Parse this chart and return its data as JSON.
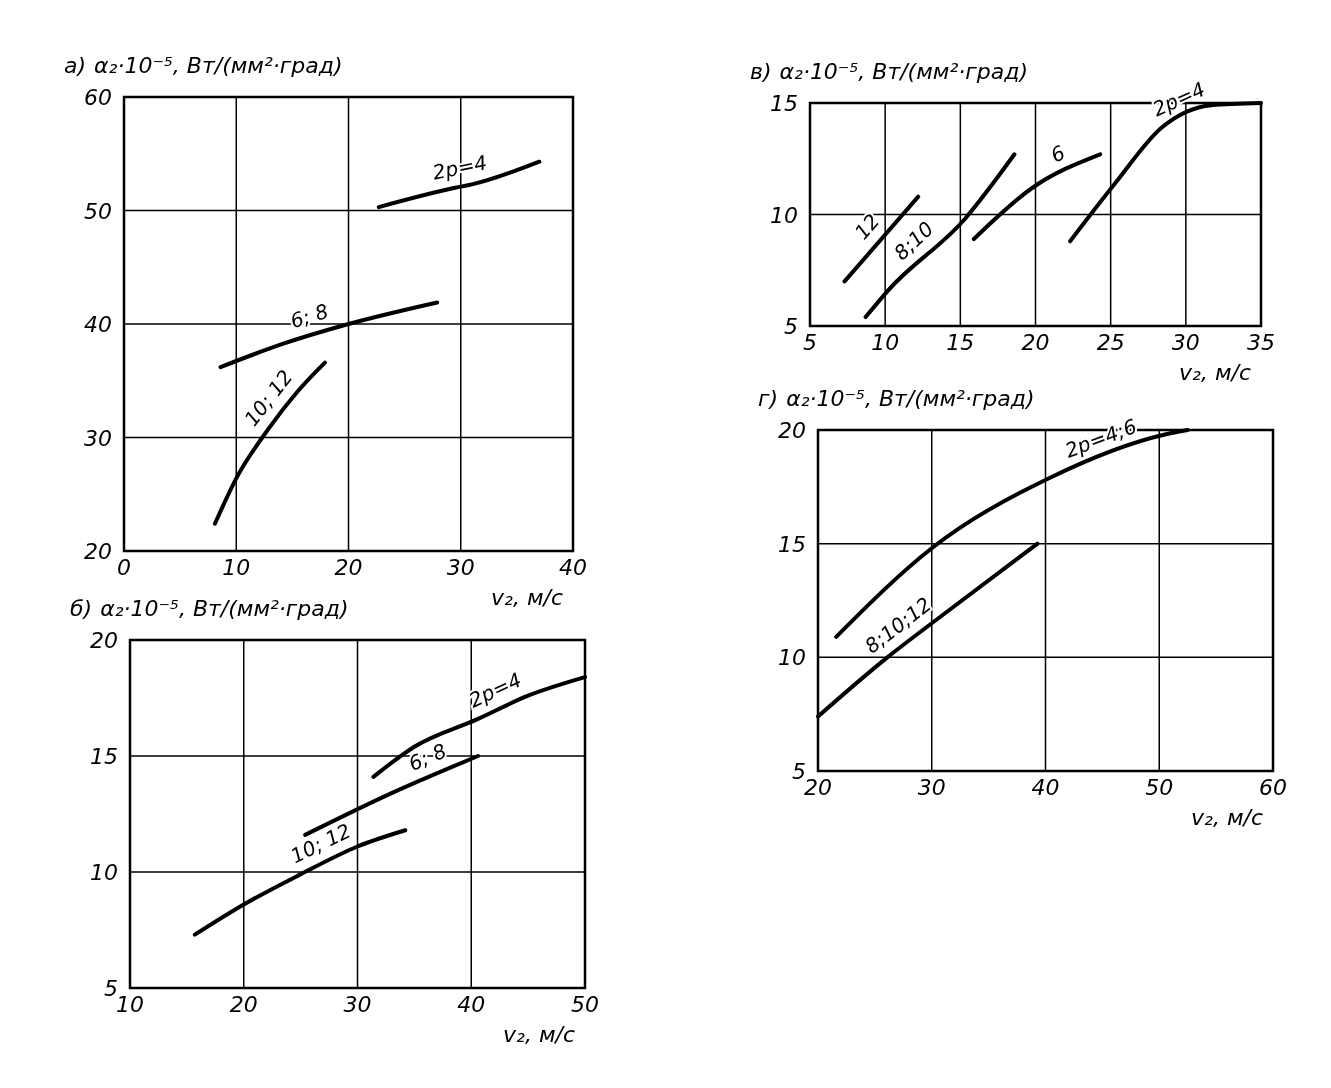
{
  "chart_data": [
    {
      "type": "line",
      "title": "а)",
      "ylabel": "α₂·10⁻⁵, Вт/(мм²·град)",
      "xlabel": "v₂, м/с",
      "xlim": [
        0,
        40
      ],
      "ylim": [
        20,
        60
      ],
      "xticks": [
        0,
        10,
        20,
        30,
        40
      ],
      "yticks": [
        20,
        30,
        40,
        50,
        60
      ],
      "grid": true,
      "line_style": "solid",
      "series": [
        {
          "name": "2p=4",
          "color": "#000000",
          "x": [
            22.7,
            29.5,
            31,
            37
          ],
          "values": [
            50.3,
            52,
            52.3,
            54.3
          ]
        },
        {
          "name": "6; 8",
          "color": "#000000",
          "x": [
            8.6,
            14,
            20,
            27.9
          ],
          "values": [
            36.2,
            38.2,
            40,
            41.9
          ]
        },
        {
          "name": "10; 12",
          "color": "#000000",
          "x": [
            8.1,
            10,
            12.9,
            15.5,
            17.9
          ],
          "values": [
            22.4,
            26.4,
            30.8,
            34.1,
            36.6
          ]
        }
      ]
    },
    {
      "type": "line",
      "title": "б)",
      "ylabel": "α₂·10⁻⁵, Вт/(мм²·град)",
      "xlabel": "v₂, м/с",
      "xlim": [
        10,
        50
      ],
      "ylim": [
        5,
        20
      ],
      "xticks": [
        10,
        20,
        30,
        40,
        50
      ],
      "yticks": [
        5,
        10,
        15,
        20
      ],
      "grid": true,
      "line_style": "solid",
      "series": [
        {
          "name": "2p=4",
          "color": "#000000",
          "x": [
            31.4,
            35,
            40.6,
            45,
            50
          ],
          "values": [
            14.1,
            15.4,
            16.6,
            17.6,
            18.4
          ]
        },
        {
          "name": "6; 8",
          "color": "#000000",
          "x": [
            25.4,
            33,
            40.6
          ],
          "values": [
            11.6,
            13.4,
            15
          ]
        },
        {
          "name": "10; 12",
          "color": "#000000",
          "x": [
            15.7,
            20,
            25,
            30,
            34.2
          ],
          "values": [
            7.3,
            8.6,
            9.9,
            11.1,
            11.8
          ]
        }
      ]
    },
    {
      "type": "line",
      "title": "в)",
      "ylabel": "α₂·10⁻⁵, Вт/(мм²·град)",
      "xlabel": "v₂, м/с",
      "xlim": [
        5,
        35
      ],
      "ylim": [
        5,
        15
      ],
      "xticks": [
        5,
        10,
        15,
        20,
        25,
        30,
        35
      ],
      "yticks": [
        5,
        10,
        15
      ],
      "grid": true,
      "line_style": "solid",
      "series": [
        {
          "name": "12",
          "color": "#000000",
          "x": [
            7.3,
            12.2
          ],
          "values": [
            7,
            10.8
          ]
        },
        {
          "name": "8;10",
          "color": "#000000",
          "x": [
            8.7,
            10.2,
            15.3,
            18.6
          ],
          "values": [
            5.4,
            6.6,
            9.8,
            12.7
          ]
        },
        {
          "name": "6",
          "color": "#000000",
          "x": [
            15.9,
            19.8,
            24.3
          ],
          "values": [
            8.9,
            11.2,
            12.7
          ]
        },
        {
          "name": "2p=4",
          "color": "#000000",
          "x": [
            22.3,
            25.3,
            28.4,
            31.7,
            35
          ],
          "values": [
            8.8,
            11.4,
            13.9,
            14.9,
            15
          ]
        }
      ]
    },
    {
      "type": "line",
      "title": "г)",
      "ylabel": "α₂·10⁻⁵, Вт/(мм²·град)",
      "xlabel": "v₂, м/с",
      "xlim": [
        20,
        60
      ],
      "ylim": [
        5,
        20
      ],
      "xticks": [
        20,
        30,
        40,
        50,
        60
      ],
      "yticks": [
        5,
        10,
        15,
        20
      ],
      "grid": true,
      "line_style": "solid",
      "series": [
        {
          "name": "2p=4;6",
          "color": "#000000",
          "x": [
            21.6,
            30,
            40.4,
            50.5,
            52.5
          ],
          "values": [
            10.9,
            14.8,
            17.9,
            19.8,
            20
          ]
        },
        {
          "name": "8;10;12",
          "color": "#000000",
          "x": [
            20,
            26.1,
            30,
            39.3
          ],
          "values": [
            7.4,
            10,
            11.5,
            15
          ]
        }
      ]
    }
  ]
}
